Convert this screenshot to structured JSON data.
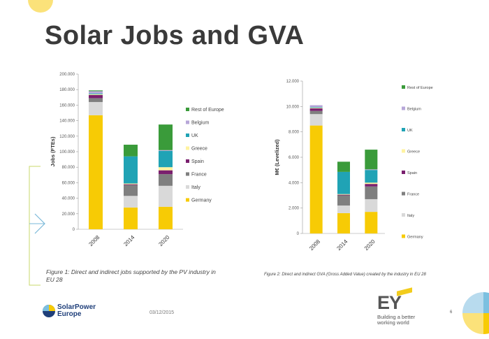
{
  "slide": {
    "title": "Solar Jobs and GVA",
    "date": "03/12/2015",
    "page_number": "6",
    "logo_left": [
      "SolarPower",
      "Europe"
    ],
    "logo_right_mark": "EY",
    "logo_right_tagline": [
      "Building a better",
      "working world"
    ]
  },
  "colors": {
    "Germany": "#f7cb05",
    "Italy": "#d9d9d9",
    "France": "#7f7f7f",
    "Spain": "#7a1f6e",
    "Greece": "#fff3a0",
    "UK": "#20a3b5",
    "Belgium": "#b7a7d9",
    "Rest of Europe": "#3a9b3a"
  },
  "chart_data": [
    {
      "type": "bar",
      "stacked": true,
      "caption": "Figure 1: Direct and indirect jobs supported by the PV industry in EU 28",
      "ylabel": "Jobs (FTEs)",
      "xlabel": "",
      "categories": [
        "2008",
        "2014",
        "2020"
      ],
      "ylim": [
        0,
        200000
      ],
      "yticks": [
        "0",
        "20.000",
        "40.000",
        "60.000",
        "80.000",
        "100.000",
        "120.000",
        "140.000",
        "160.000",
        "180.000",
        "200.000"
      ],
      "legend_placement": "right",
      "legend_order": [
        "Rest of Europe",
        "Belgium",
        "UK",
        "Greece",
        "Spain",
        "France",
        "Italy",
        "Germany"
      ],
      "series": [
        {
          "name": "Germany",
          "values": [
            147000,
            28000,
            29000
          ]
        },
        {
          "name": "Italy",
          "values": [
            17000,
            15000,
            27000
          ]
        },
        {
          "name": "France",
          "values": [
            5000,
            14000,
            15000
          ]
        },
        {
          "name": "Spain",
          "values": [
            4000,
            1000,
            5000
          ]
        },
        {
          "name": "Greece",
          "values": [
            1000,
            1000,
            4000
          ]
        },
        {
          "name": "UK",
          "values": [
            1000,
            35000,
            21000
          ]
        },
        {
          "name": "Belgium",
          "values": [
            3000,
            0,
            1000
          ]
        },
        {
          "name": "Rest of Europe",
          "values": [
            1000,
            15000,
            33000
          ]
        }
      ]
    },
    {
      "type": "bar",
      "stacked": true,
      "caption": "Figure 2: Direct and indirect GVA (Gross Added Value) created by the industry in EU 28",
      "ylabel": "M€ (Levelized)",
      "xlabel": "",
      "categories": [
        "2008",
        "2014",
        "2020"
      ],
      "ylim": [
        0,
        12000
      ],
      "yticks": [
        "0",
        "2.000",
        "4.000",
        "6.000",
        "8.000",
        "10.000",
        "12.000"
      ],
      "legend_placement": "right",
      "legend_order": [
        "Rest of Europe",
        "Belgium",
        "UK",
        "Greece",
        "Spain",
        "France",
        "Italy",
        "Germany"
      ],
      "series": [
        {
          "name": "Germany",
          "values": [
            8500,
            1600,
            1700
          ]
        },
        {
          "name": "Italy",
          "values": [
            900,
            600,
            1000
          ]
        },
        {
          "name": "France",
          "values": [
            250,
            800,
            1000
          ]
        },
        {
          "name": "Spain",
          "values": [
            200,
            50,
            200
          ]
        },
        {
          "name": "Greece",
          "values": [
            50,
            50,
            100
          ]
        },
        {
          "name": "UK",
          "values": [
            50,
            1750,
            1000
          ]
        },
        {
          "name": "Belgium",
          "values": [
            150,
            0,
            50
          ]
        },
        {
          "name": "Rest of Europe",
          "values": [
            0,
            800,
            1550
          ]
        }
      ]
    }
  ]
}
